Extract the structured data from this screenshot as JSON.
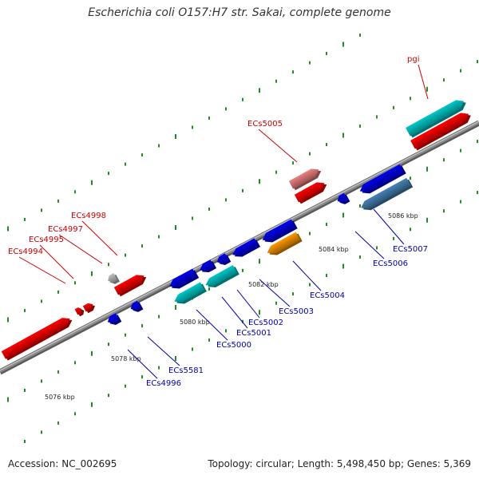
{
  "header": {
    "title": "Escherichia coli O157:H7 str. Sakai, complete genome"
  },
  "footer": {
    "accession": "Accession: NC_002695",
    "summary": "Topology: circular; Length: 5,498,450 bp; Genes: 5,369"
  },
  "colors": {
    "forward_label": "#cc0000",
    "reverse_label": "#0000aa",
    "backbone": "#8a8a8a",
    "tick": "#228b22"
  },
  "scale_labels": [
    "5076 kbp",
    "5078 kbp",
    "5080 kbp",
    "5082 kbp",
    "5084 kbp",
    "5086 kbp"
  ],
  "genes": [
    {
      "label": "ECs4994",
      "strand": "forward",
      "color": "#ff0000"
    },
    {
      "label": "ECs4995",
      "strand": "forward",
      "color": "#ff0000"
    },
    {
      "label": "ECs4997",
      "strand": "forward",
      "color": "#ff0000"
    },
    {
      "label": "ECs4998",
      "strand": "forward",
      "color": "#c0c0c0"
    },
    {
      "label": "ECs5005",
      "strand": "forward",
      "color": "#ee8080"
    },
    {
      "label": "pgi",
      "strand": "forward",
      "color": "#00c8c8"
    },
    {
      "label": "ECs4996",
      "strand": "reverse",
      "color": "#0000ee"
    },
    {
      "label": "ECs5581",
      "strand": "reverse",
      "color": "#0000ee"
    },
    {
      "label": "ECs5000",
      "strand": "reverse",
      "color": "#00c8c8"
    },
    {
      "label": "ECs5001",
      "strand": "reverse",
      "color": "#0000ee"
    },
    {
      "label": "ECs5002",
      "strand": "reverse",
      "color": "#0000ee"
    },
    {
      "label": "ECs5003",
      "strand": "reverse",
      "color": "#0000ee"
    },
    {
      "label": "ECs5004",
      "strand": "reverse",
      "color": "#ff9900"
    },
    {
      "label": "ECs5006",
      "strand": "reverse",
      "color": "#0000ee"
    },
    {
      "label": "ECs5007",
      "strand": "reverse",
      "color": "#4682b4"
    }
  ]
}
